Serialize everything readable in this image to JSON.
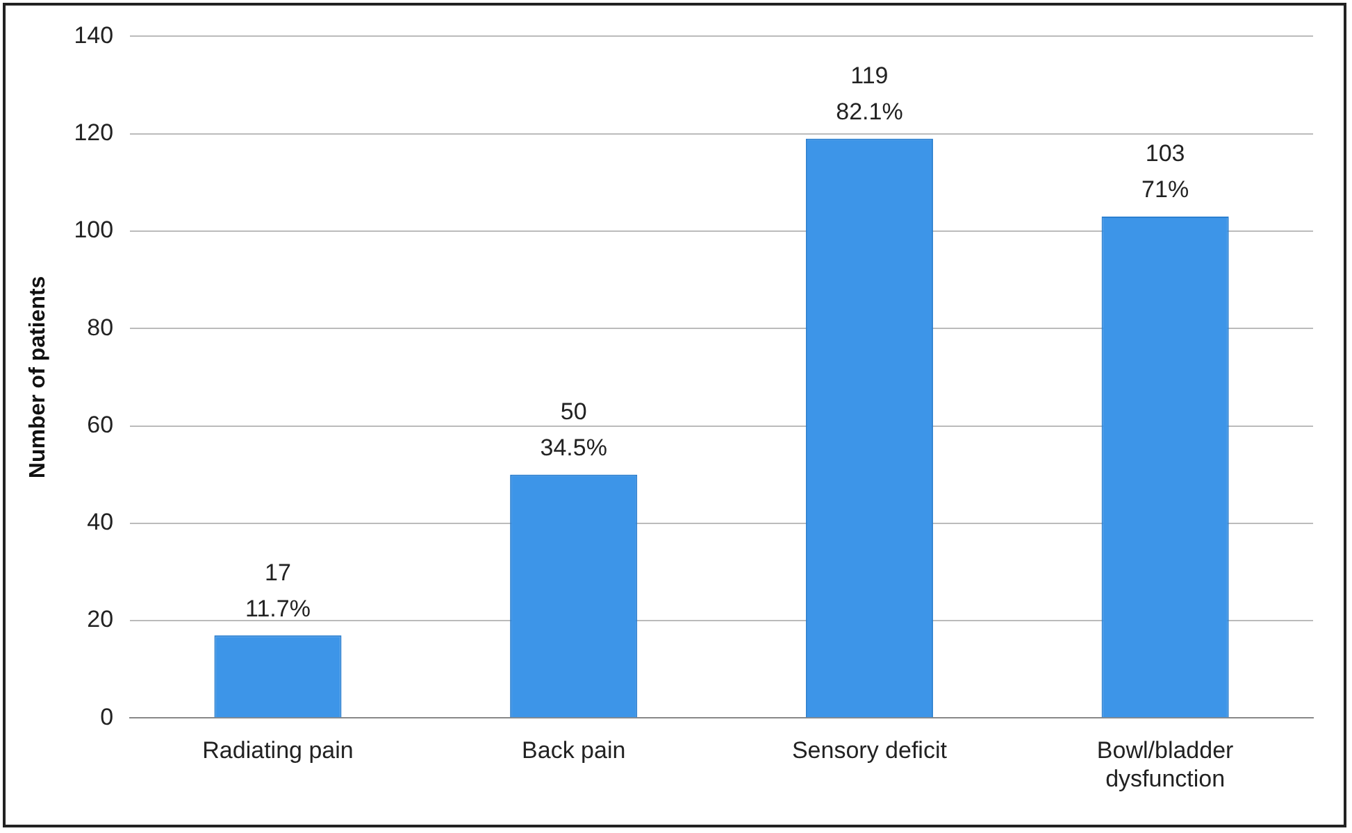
{
  "chart_data": {
    "type": "bar",
    "ylabel": "Number of patients",
    "categories": [
      "Radiating pain",
      "Back pain",
      "Sensory deficit",
      "Bowl/bladder dysfunction"
    ],
    "values": [
      17,
      50,
      119,
      103
    ],
    "value_labels": [
      "17\n11.7%",
      "50\n34.5%",
      "119\n82.1%",
      "103\n71%"
    ],
    "color": "#3d95e8",
    "ylim": [
      0,
      140
    ],
    "yticks": [
      0,
      20,
      40,
      60,
      80,
      100,
      120,
      140
    ],
    "grid": "y",
    "legend": false
  }
}
